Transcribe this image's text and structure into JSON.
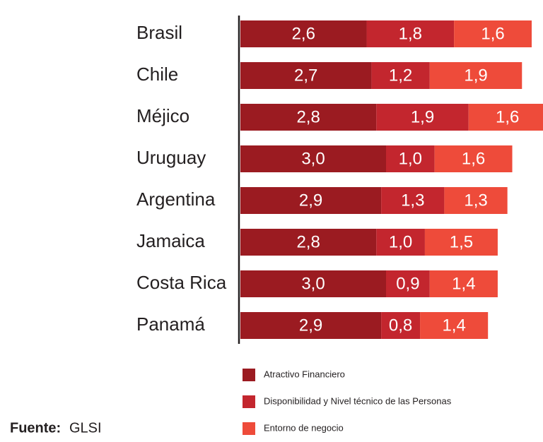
{
  "chart_data": {
    "type": "stacked-bar-horizontal",
    "categories": [
      "Brasil",
      "Chile",
      "Méjico",
      "Uruguay",
      "Argentina",
      "Jamaica",
      "Costa Rica",
      "Panamá"
    ],
    "series": [
      {
        "name": "Atractivo Financiero",
        "color": "#9b1b21",
        "values": [
          2.6,
          2.7,
          2.8,
          3.0,
          2.9,
          2.8,
          3.0,
          2.9
        ],
        "value_labels": [
          "2,6",
          "2,7",
          "2,8",
          "3,0",
          "2,9",
          "2,8",
          "3,0",
          "2,9"
        ]
      },
      {
        "name": "Disponibilidad y Nivel técnico de las Personas",
        "color": "#c3262e",
        "values": [
          1.8,
          1.2,
          1.9,
          1.0,
          1.3,
          1.0,
          0.9,
          0.8
        ],
        "value_labels": [
          "1,8",
          "1,2",
          "1,9",
          "1,0",
          "1,3",
          "1,0",
          "0,9",
          "0,8"
        ]
      },
      {
        "name": "Entorno de negocio",
        "color": "#ee4b3a",
        "values": [
          1.6,
          1.9,
          1.6,
          1.6,
          1.3,
          1.5,
          1.4,
          1.4
        ],
        "value_labels": [
          "1,6",
          "1,9",
          "1,6",
          "1,6",
          "1,3",
          "1,5",
          "1,4",
          "1,4"
        ]
      }
    ],
    "xlim": [
      0,
      6
    ],
    "source_label": "Fuente:",
    "source": "GLSI"
  }
}
